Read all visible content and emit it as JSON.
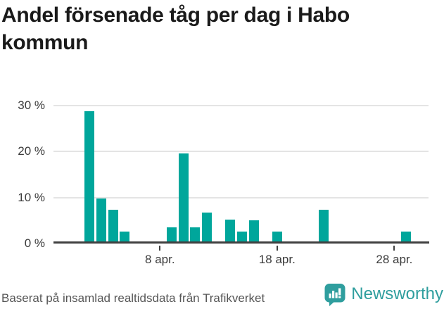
{
  "title": "Andel försenade tåg per dag i Habo kommun",
  "footer": {
    "source_note": "Baserat på insamlad realtidsdata från Trafikverket",
    "brand_name": "Newsworthy"
  },
  "colors": {
    "bar": "#00a69b",
    "brand": "#2f9e9e",
    "gridline": "#e4e4e4",
    "axis": "#404040",
    "axis_label": "#3b3b3b",
    "title_text": "#1a1a1a",
    "source_text": "#565656"
  },
  "chart_data": {
    "type": "bar",
    "title": "Andel försenade tåg per dag i Habo kommun",
    "x_unit": "day of April",
    "y_unit": "percent delayed trains",
    "ylim": [
      0,
      31.4
    ],
    "grid": "horizontal",
    "legend": "none",
    "yticks": [
      {
        "value": 0,
        "label": "0 %"
      },
      {
        "value": 10,
        "label": "10 %"
      },
      {
        "value": 20,
        "label": "20 %"
      },
      {
        "value": 30,
        "label": "30 %"
      }
    ],
    "xticks": [
      {
        "day": 8,
        "label": "8 apr."
      },
      {
        "day": 18,
        "label": "18 apr."
      },
      {
        "day": 28,
        "label": "28 apr."
      }
    ],
    "points": [
      {
        "day": 2,
        "value": 28.4
      },
      {
        "day": 3,
        "value": 9.4
      },
      {
        "day": 4,
        "value": 6.9
      },
      {
        "day": 5,
        "value": 2.2
      },
      {
        "day": 9,
        "value": 3.1
      },
      {
        "day": 10,
        "value": 19.2
      },
      {
        "day": 11,
        "value": 3.1
      },
      {
        "day": 12,
        "value": 6.3
      },
      {
        "day": 14,
        "value": 4.7
      },
      {
        "day": 15,
        "value": 2.2
      },
      {
        "day": 16,
        "value": 4.6
      },
      {
        "day": 18,
        "value": 2.2
      },
      {
        "day": 22,
        "value": 6.9
      },
      {
        "day": 29,
        "value": 2.2
      }
    ]
  }
}
